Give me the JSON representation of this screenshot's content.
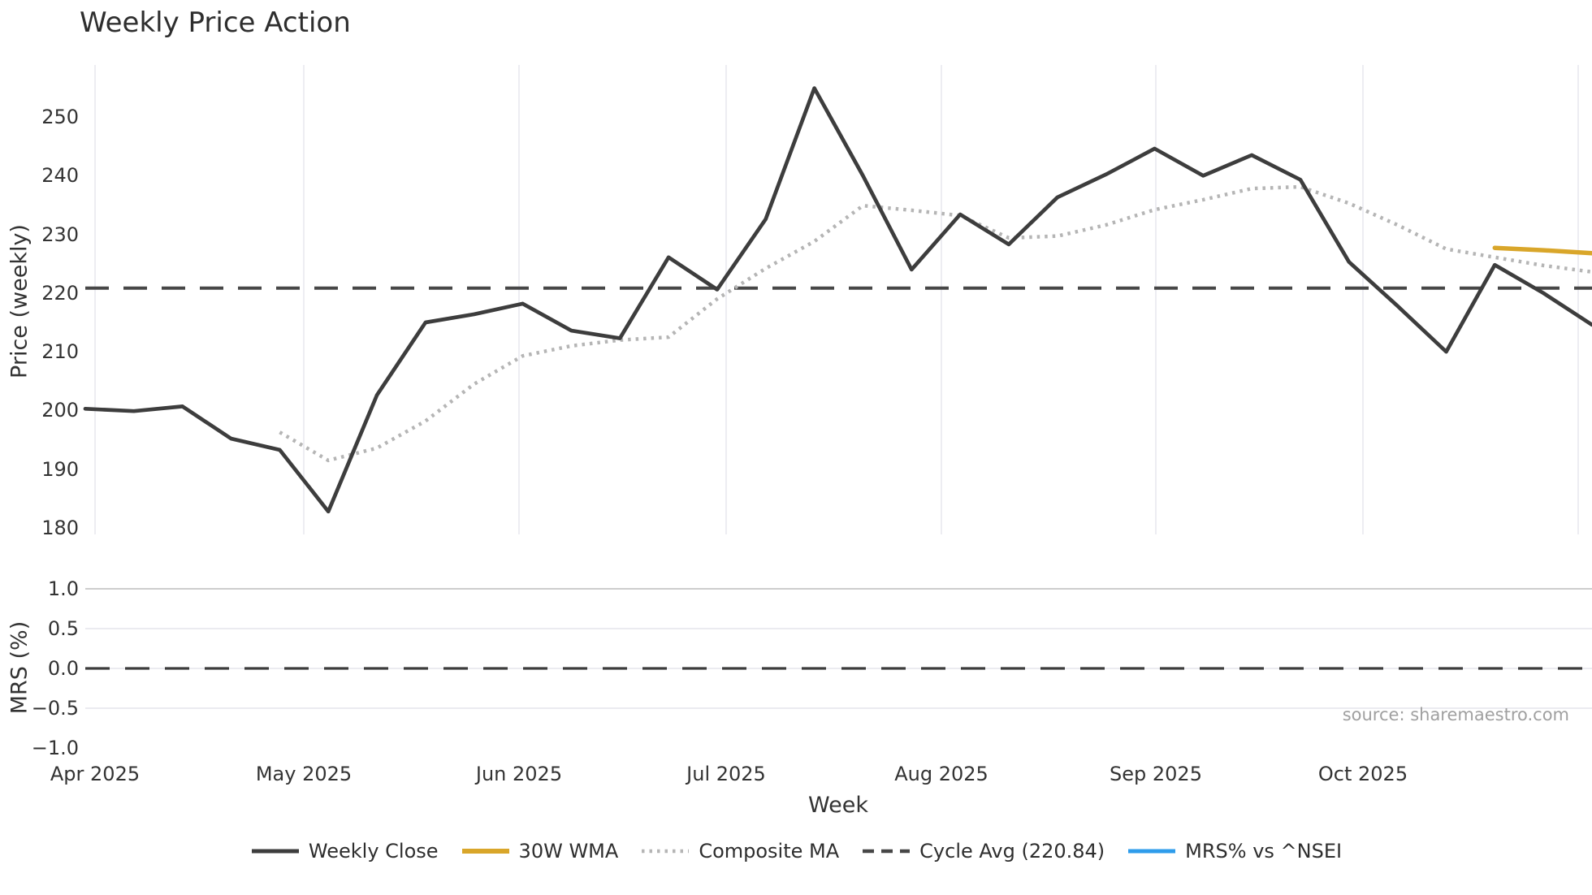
{
  "title": "Weekly Price Action",
  "source_note": "source: sharemaestro.com",
  "chart_data": [
    {
      "type": "line",
      "panel": "price",
      "title": "Weekly Price Action",
      "xlabel": "Week",
      "ylabel": "Price (weekly)",
      "ylim": [
        178.9,
        258.9
      ],
      "yticks": [
        250,
        240,
        230,
        220,
        210,
        200,
        190,
        180
      ],
      "x_month_labels": [
        "Apr 2025",
        "May 2025",
        "Jun 2025",
        "Jul 2025",
        "Aug 2025",
        "Sep 2025",
        "Oct 2025"
      ],
      "grid": "vertical-months-only",
      "cycle_avg_value": 220.84,
      "series": [
        {
          "name": "Weekly Close",
          "style": "solid",
          "color": "#3d3d3d",
          "values": [
            200.3,
            199.9,
            200.7,
            195.2,
            193.3,
            182.8,
            202.6,
            215.0,
            216.4,
            218.2,
            213.6,
            212.3,
            226.1,
            220.6,
            232.6,
            254.9,
            240.0,
            224.0,
            233.4,
            228.3,
            236.3,
            240.2,
            244.6,
            240.0,
            243.5,
            239.3,
            225.3,
            217.8,
            210.0,
            224.8,
            220.0,
            214.6
          ]
        },
        {
          "name": "30W WMA",
          "style": "solid",
          "color": "#d9a62a",
          "values": [
            null,
            null,
            null,
            null,
            null,
            null,
            null,
            null,
            null,
            null,
            null,
            null,
            null,
            null,
            null,
            null,
            null,
            null,
            null,
            null,
            null,
            null,
            null,
            null,
            null,
            null,
            null,
            null,
            null,
            227.7,
            227.3,
            226.8
          ]
        },
        {
          "name": "Composite MA",
          "style": "dotted",
          "color": "#b5b5b5",
          "values": [
            null,
            null,
            null,
            null,
            196.3,
            191.5,
            193.6,
            198.2,
            204.5,
            209.3,
            211.0,
            212.0,
            212.5,
            219.0,
            224.2,
            228.8,
            234.9,
            234.1,
            233.2,
            229.4,
            229.7,
            231.6,
            234.2,
            235.9,
            237.8,
            238.1,
            235.3,
            231.6,
            227.5,
            226.1,
            224.7,
            223.6
          ]
        },
        {
          "name": "Cycle Avg (220.84)",
          "style": "dashed",
          "color": "#474747",
          "constant": 220.84
        }
      ]
    },
    {
      "type": "line",
      "panel": "mrs",
      "ylabel": "MRS (%)",
      "ylim": [
        -1.05,
        1.05
      ],
      "yticks": [
        {
          "label": "1.0",
          "value": 1.0
        },
        {
          "label": "0.5",
          "value": 0.5
        },
        {
          "label": "0.0",
          "value": 0.0
        },
        {
          "label": "−0.5",
          "value": -0.5
        },
        {
          "label": "−1.0",
          "value": -1.0
        }
      ],
      "zero_line": 0.0,
      "series": [
        {
          "name": "MRS% vs ^NSEI",
          "style": "solid",
          "color": "#2e9ceb",
          "values": []
        }
      ]
    }
  ],
  "legend_items": [
    {
      "label": "Weekly Close",
      "color": "#3d3d3d",
      "style": "solid"
    },
    {
      "label": "30W WMA",
      "color": "#d9a62a",
      "style": "solid-thick"
    },
    {
      "label": "Composite MA",
      "color": "#b5b5b5",
      "style": "dotted"
    },
    {
      "label": "Cycle Avg (220.84)",
      "color": "#474747",
      "style": "dashed"
    },
    {
      "label": "MRS% vs ^NSEI",
      "color": "#2e9ceb",
      "style": "solid"
    }
  ]
}
